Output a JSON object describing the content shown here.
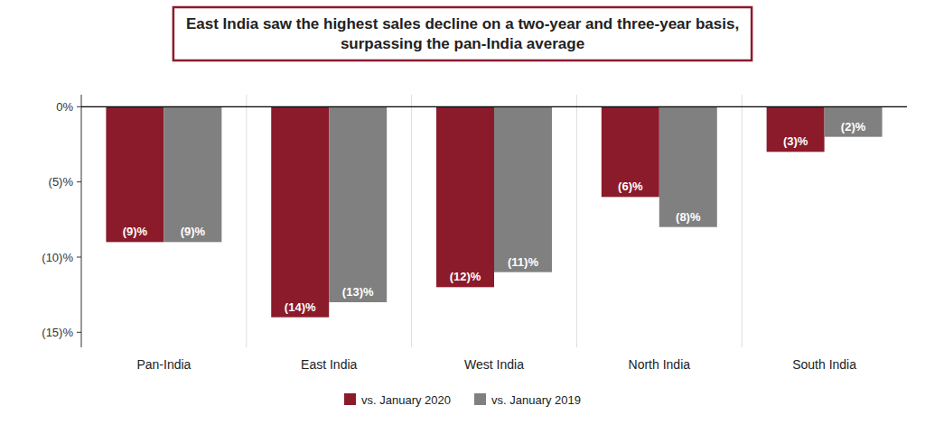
{
  "chart_data": {
    "type": "bar",
    "title": "East India saw the highest sales decline on a two-year and three-year basis,\nsurpassing the pan-India average",
    "categories": [
      "Pan-India",
      "East India",
      "West India",
      "North India",
      "South India"
    ],
    "series": [
      {
        "name": "vs. January 2020",
        "color": "#8B1A2B",
        "values": [
          -9,
          -14,
          -12,
          -6,
          -3
        ],
        "value_labels": [
          "(9)%",
          "(14)%",
          "(12)%",
          "(6)%",
          "(3)%"
        ]
      },
      {
        "name": "vs. January 2019",
        "color": "#808080",
        "values": [
          -9,
          -13,
          -11,
          -8,
          -2
        ],
        "value_labels": [
          "(9)%",
          "(13)%",
          "(11)%",
          "(8)%",
          "(2)%"
        ]
      }
    ],
    "ylim": [
      -16,
      0.8
    ],
    "yticks": [
      {
        "value": 0,
        "label": "0%"
      },
      {
        "value": -5,
        "label": "(5)%"
      },
      {
        "value": -10,
        "label": "(10)%"
      },
      {
        "value": -15,
        "label": "(15)%"
      }
    ],
    "data_labels": true,
    "grid": false,
    "legend": "bottom"
  }
}
